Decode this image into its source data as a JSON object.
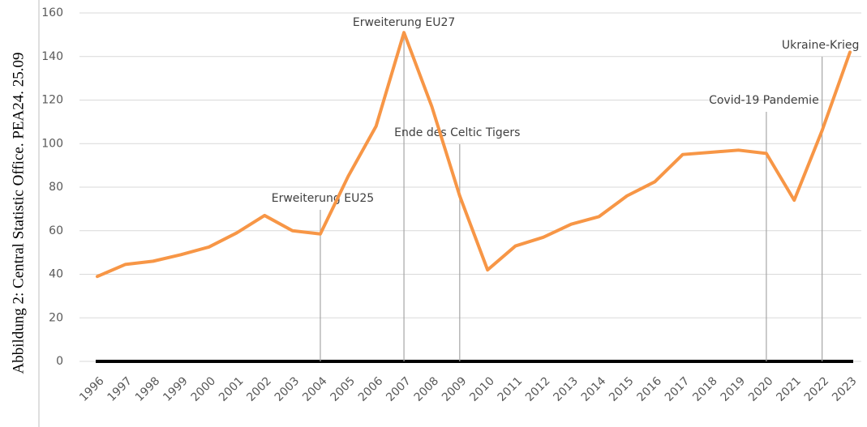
{
  "caption": "Abbildung 2: Central Statistic Office. PEA24. 25.09",
  "chart_data": {
    "type": "line",
    "categories": [
      "1996",
      "1997",
      "1998",
      "1999",
      "2000",
      "2001",
      "2002",
      "2003",
      "2004",
      "2005",
      "2006",
      "2007",
      "2008",
      "2009",
      "2010",
      "2011",
      "2012",
      "2013",
      "2014",
      "2015",
      "2016",
      "2017",
      "2018",
      "2019",
      "2020",
      "2021",
      "2022",
      "2023"
    ],
    "values": [
      39,
      44.5,
      46,
      49,
      52.5,
      59,
      67,
      60,
      58.5,
      85,
      108,
      151,
      117,
      76,
      42,
      53,
      57,
      63,
      66.5,
      76,
      82.5,
      95,
      96,
      97,
      95.5,
      74,
      106,
      142
    ],
    "color": "#f79646",
    "ylim": [
      0,
      160
    ],
    "yticks": [
      0,
      20,
      40,
      60,
      80,
      100,
      120,
      140,
      160
    ],
    "grid": true,
    "annotations": [
      {
        "text": "Erweiterung EU25",
        "x": "2004"
      },
      {
        "text": "Erweiterung EU27",
        "x": "2007"
      },
      {
        "text": "Ende des Celtic Tigers",
        "x": "2009"
      },
      {
        "text": "Covid-19 Pandemie",
        "x": "2020"
      },
      {
        "text": "Ukraine-Krieg",
        "x": "2022"
      }
    ]
  }
}
